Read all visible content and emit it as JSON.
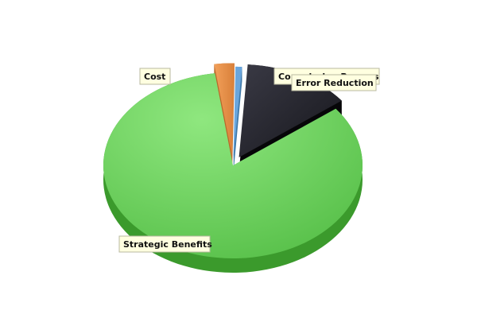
{
  "chart_data": {
    "type": "pie",
    "style": "3d-exploded",
    "slices": [
      {
        "label": "Cost",
        "value": 2.5,
        "color": "#e8944a"
      },
      {
        "label": "Commission Process",
        "value": 0.8,
        "color": "#6aa6dd"
      },
      {
        "label": "Error Reduction",
        "value": 13.5,
        "color": "#2a2a33"
      },
      {
        "label": "Strategic Benefits",
        "value": 83.2,
        "color": "#6fd36a"
      }
    ]
  }
}
